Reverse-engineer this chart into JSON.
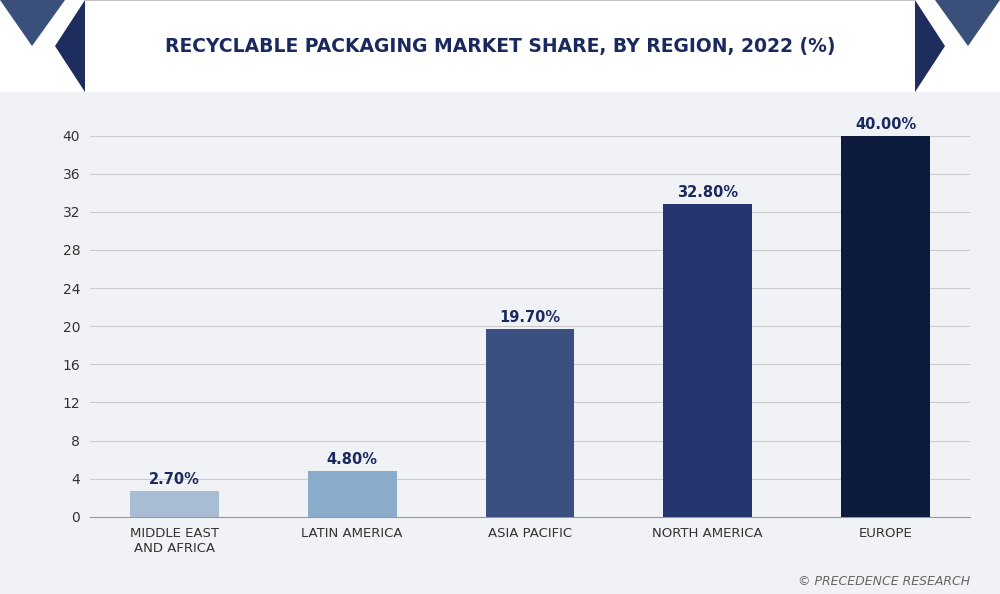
{
  "title": "RECYCLABLE PACKAGING MARKET SHARE, BY REGION, 2022 (%)",
  "categories": [
    "MIDDLE EAST\nAND AFRICA",
    "LATIN AMERICA",
    "ASIA PACIFIC",
    "NORTH AMERICA",
    "EUROPE"
  ],
  "values": [
    2.7,
    4.8,
    19.7,
    32.8,
    40.0
  ],
  "labels": [
    "2.70%",
    "4.80%",
    "19.70%",
    "32.80%",
    "40.00%"
  ],
  "bar_colors": [
    "#a8bcd4",
    "#8aabc9",
    "#3b5080",
    "#253570",
    "#0d1b3e"
  ],
  "background_color": "#f0f2f5",
  "plot_bg_color": "#f0f2f5",
  "title_color": "#1a2a5e",
  "title_fontsize": 13.5,
  "ytick_labels": [
    "0",
    "4",
    "8",
    "12",
    "16",
    "20",
    "24",
    "28",
    "32",
    "36",
    "40"
  ],
  "ytick_values": [
    0,
    4,
    8,
    12,
    16,
    20,
    24,
    28,
    32,
    36,
    40
  ],
  "ylim": [
    0,
    43
  ],
  "grid_color": "#cccccc",
  "watermark": "© PRECEDENCE RESEARCH",
  "header_dark": "#1e2d5e",
  "header_mid": "#3a4f7a",
  "header_white": "#ffffff"
}
